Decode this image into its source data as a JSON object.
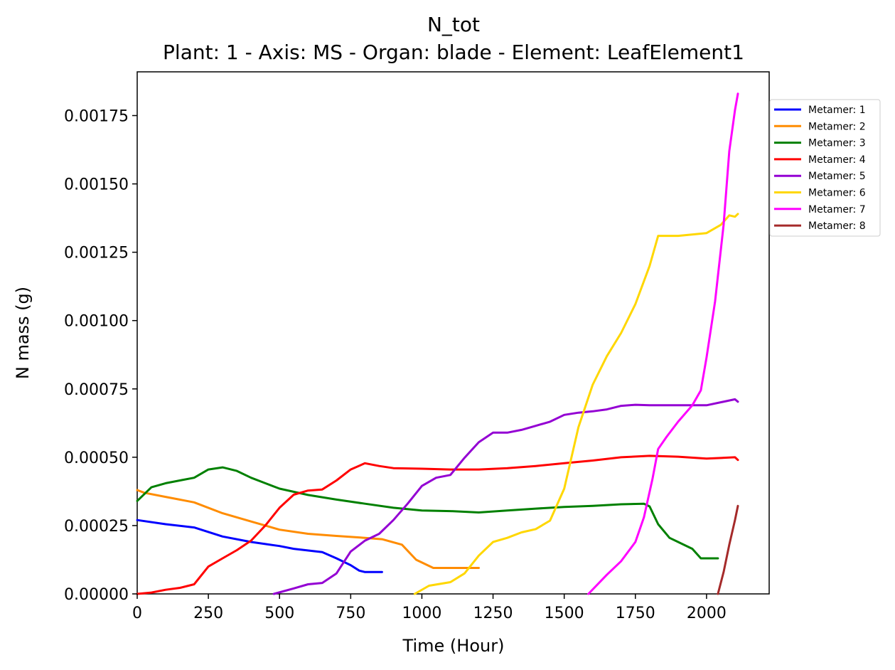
{
  "chart_data": {
    "type": "line",
    "title": "N_tot",
    "subtitle": "Plant: 1 - Axis: MS - Organ: blade - Element: LeafElement1",
    "xlabel": "Time (Hour)",
    "ylabel": "N mass (g)",
    "xlim": [
      0,
      2220
    ],
    "ylim": [
      0,
      0.00191
    ],
    "xticks": [
      0,
      250,
      500,
      750,
      1000,
      1250,
      1500,
      1750,
      2000
    ],
    "xtick_labels": [
      "0",
      "250",
      "500",
      "750",
      "1000",
      "1250",
      "1500",
      "1750",
      "2000"
    ],
    "yticks": [
      0,
      0.00025,
      0.0005,
      0.00075,
      0.001,
      0.00125,
      0.0015,
      0.00175
    ],
    "ytick_labels": [
      "0.00000",
      "0.00025",
      "0.00050",
      "0.00075",
      "0.00100",
      "0.00125",
      "0.00150",
      "0.00175"
    ],
    "grid": false,
    "legend_position": "outside-right-top",
    "series": [
      {
        "name": "Metamer: 1",
        "color": "#0000ff",
        "x": [
          0,
          100,
          200,
          300,
          400,
          500,
          550,
          650,
          700,
          750,
          780,
          800,
          860
        ],
        "y": [
          0.00027,
          0.000255,
          0.000243,
          0.00021,
          0.00019,
          0.000175,
          0.000165,
          0.000153,
          0.00013,
          0.000105,
          8.5e-05,
          8e-05,
          8e-05
        ]
      },
      {
        "name": "Metamer: 2",
        "color": "#ff8c00",
        "x": [
          0,
          25,
          100,
          200,
          300,
          400,
          500,
          600,
          700,
          800,
          860,
          930,
          980,
          1040,
          1100,
          1200
        ],
        "y": [
          0.00038,
          0.00037,
          0.000355,
          0.000335,
          0.000295,
          0.000265,
          0.000235,
          0.00022,
          0.000212,
          0.000205,
          0.0002,
          0.00018,
          0.000125,
          9.5e-05,
          9.5e-05,
          9.5e-05
        ]
      },
      {
        "name": "Metamer: 3",
        "color": "#008000",
        "x": [
          0,
          50,
          100,
          150,
          200,
          250,
          300,
          350,
          400,
          450,
          500,
          600,
          700,
          800,
          900,
          1000,
          1100,
          1200,
          1300,
          1400,
          1500,
          1600,
          1700,
          1780,
          1800,
          1830,
          1870,
          1900,
          1950,
          1980,
          2040
        ],
        "y": [
          0.00034,
          0.00039,
          0.000405,
          0.000415,
          0.000425,
          0.000455,
          0.000463,
          0.00045,
          0.000425,
          0.000405,
          0.000385,
          0.000362,
          0.000345,
          0.00033,
          0.000315,
          0.000305,
          0.000303,
          0.000298,
          0.000305,
          0.000312,
          0.000318,
          0.000322,
          0.000328,
          0.00033,
          0.00032,
          0.000255,
          0.000205,
          0.00019,
          0.000165,
          0.00013,
          0.00013
        ]
      },
      {
        "name": "Metamer: 4",
        "color": "#ff0000",
        "x": [
          0,
          50,
          100,
          150,
          200,
          250,
          300,
          350,
          400,
          450,
          500,
          550,
          600,
          650,
          700,
          750,
          800,
          850,
          900,
          1000,
          1100,
          1200,
          1300,
          1400,
          1500,
          1600,
          1700,
          1800,
          1900,
          2000,
          2100,
          2110
        ],
        "y": [
          0,
          5e-06,
          1.5e-05,
          2.2e-05,
          3.5e-05,
          0.0001,
          0.00013,
          0.00016,
          0.000195,
          0.00025,
          0.000315,
          0.000363,
          0.000378,
          0.000382,
          0.000415,
          0.000455,
          0.000478,
          0.000468,
          0.00046,
          0.000458,
          0.000455,
          0.000455,
          0.00046,
          0.000468,
          0.000478,
          0.000488,
          0.0005,
          0.000505,
          0.000502,
          0.000495,
          0.0005,
          0.00049
        ]
      },
      {
        "name": "Metamer: 5",
        "color": "#9400d3",
        "x": [
          480,
          550,
          600,
          650,
          700,
          750,
          800,
          850,
          900,
          950,
          1000,
          1050,
          1100,
          1150,
          1200,
          1250,
          1300,
          1350,
          1400,
          1450,
          1500,
          1550,
          1600,
          1650,
          1700,
          1750,
          1800,
          1900,
          2000,
          2100,
          2110
        ],
        "y": [
          0,
          2e-05,
          3.5e-05,
          4e-05,
          7.5e-05,
          0.000155,
          0.000195,
          0.00022,
          0.00027,
          0.00033,
          0.000395,
          0.000425,
          0.000435,
          0.000498,
          0.000555,
          0.00059,
          0.00059,
          0.0006,
          0.000615,
          0.00063,
          0.000655,
          0.000663,
          0.000668,
          0.000675,
          0.000688,
          0.000692,
          0.00069,
          0.00069,
          0.00069,
          0.000712,
          0.000703
        ]
      },
      {
        "name": "Metamer: 6",
        "color": "#ffd700",
        "x": [
          975,
          1025,
          1100,
          1150,
          1200,
          1250,
          1300,
          1350,
          1400,
          1450,
          1500,
          1550,
          1600,
          1650,
          1700,
          1750,
          1800,
          1830,
          1900,
          2000,
          2050,
          2080,
          2100,
          2110
        ],
        "y": [
          0,
          3e-05,
          4.3e-05,
          7.5e-05,
          0.00014,
          0.00019,
          0.000205,
          0.000225,
          0.000237,
          0.000268,
          0.000385,
          0.00061,
          0.000765,
          0.00087,
          0.000955,
          0.00106,
          0.0012,
          0.00131,
          0.00131,
          0.00132,
          0.00135,
          0.001385,
          0.00138,
          0.00139
        ]
      },
      {
        "name": "Metamer: 7",
        "color": "#ff00ff",
        "x": [
          1585,
          1650,
          1700,
          1750,
          1780,
          1810,
          1830,
          1860,
          1900,
          1950,
          1980,
          2000,
          2030,
          2060,
          2080,
          2100,
          2110
        ],
        "y": [
          0,
          7e-05,
          0.00012,
          0.00019,
          0.00028,
          0.00042,
          0.00053,
          0.000575,
          0.00063,
          0.00069,
          0.000745,
          0.000865,
          0.00107,
          0.00135,
          0.00162,
          0.00177,
          0.00183
        ]
      },
      {
        "name": "Metamer: 8",
        "color": "#a52a2a",
        "x": [
          2040,
          2060,
          2080,
          2100,
          2110
        ],
        "y": [
          0,
          8e-05,
          0.00018,
          0.00027,
          0.000322
        ]
      }
    ]
  }
}
